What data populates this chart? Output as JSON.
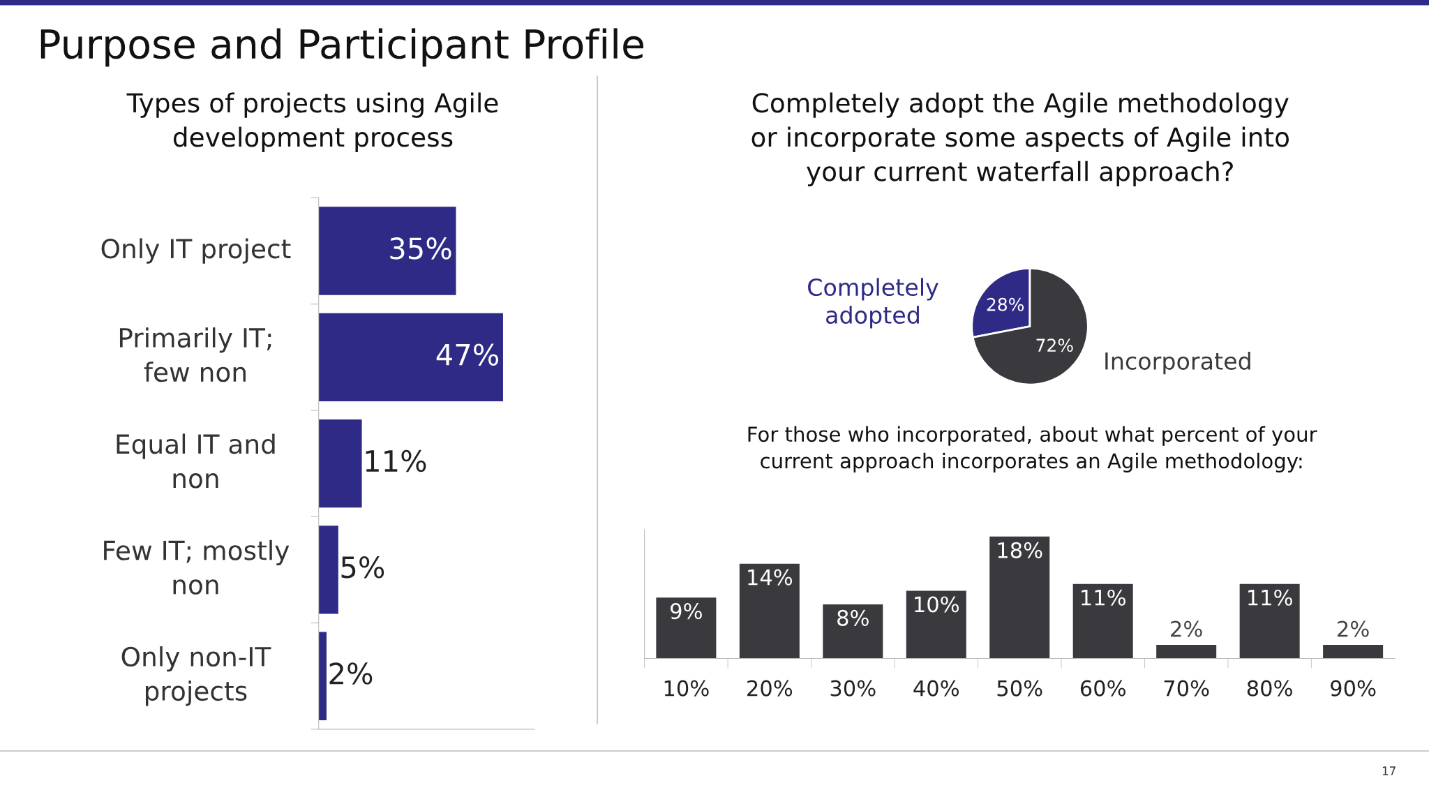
{
  "chart_data": [
    {
      "type": "bar",
      "orientation": "horizontal",
      "title": "Types of projects using Agile\ndevelopment process",
      "categories": [
        "Only IT project",
        "Primarily IT;\nfew non",
        "Equal IT and\nnon",
        "Few IT; mostly\nnon",
        "Only non-IT\nprojects"
      ],
      "values": [
        35,
        47,
        11,
        5,
        2
      ],
      "value_labels": [
        "35%",
        "47%",
        "11%",
        "5%",
        "2%"
      ],
      "color": "#2f2a85",
      "xlim": [
        0,
        55
      ],
      "tick_labels": "y",
      "annotations": [
        "Purpose and Participant Profile",
        "17"
      ]
    },
    {
      "type": "pie",
      "title": "Completely adopt the Agile methodology\nor incorporate some aspects of Agile into\nyour current waterfall approach?",
      "categories": [
        "Completely\nadopted",
        "Incorporated"
      ],
      "values": [
        28,
        72
      ],
      "value_labels": [
        "28%",
        "72%"
      ],
      "colors": [
        "#2f2a85",
        "#3a3a3e"
      ]
    },
    {
      "type": "bar",
      "title": "For those who incorporated, about what percent of your\ncurrent approach incorporates an Agile methodology:",
      "categories": [
        "10%",
        "20%",
        "30%",
        "40%",
        "50%",
        "60%",
        "70%",
        "80%",
        "90%"
      ],
      "values": [
        9,
        14,
        8,
        10,
        18,
        11,
        2,
        11,
        2
      ],
      "value_labels": [
        "9%",
        "14%",
        "8%",
        "10%",
        "18%",
        "11%",
        "2%",
        "11%",
        "2%"
      ],
      "color": "#3a3a3e",
      "ylim": [
        0,
        19
      ],
      "tick_labels": "x"
    }
  ]
}
